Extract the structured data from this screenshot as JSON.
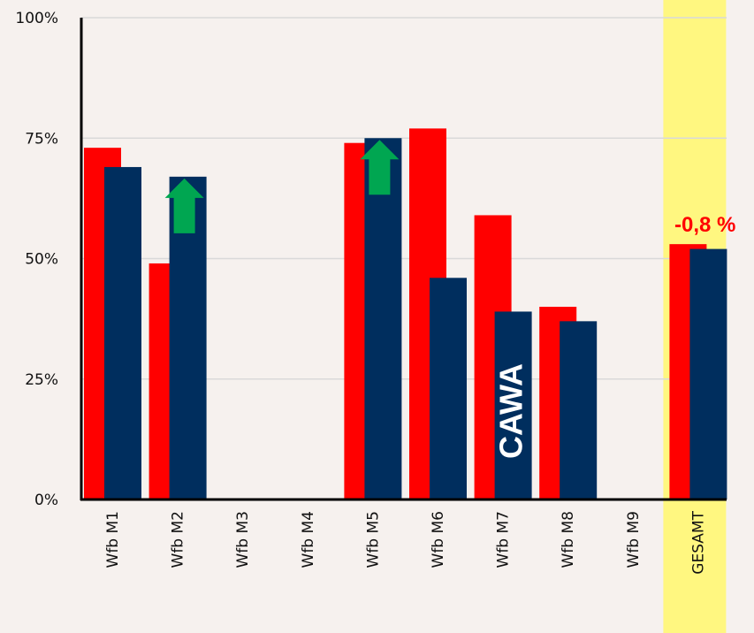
{
  "chart_data": {
    "type": "bar",
    "categories": [
      "Wfb M1",
      "Wfb M2",
      "Wfb M3",
      "Wfb M4",
      "Wfb M5",
      "Wfb M6",
      "Wfb M7",
      "Wfb M8",
      "Wfb M9",
      "GESAMT"
    ],
    "series": [
      {
        "values": [
          73,
          49,
          null,
          null,
          74,
          77,
          59,
          40,
          null,
          53
        ],
        "color": "#ff0000"
      },
      {
        "values": [
          69,
          67,
          null,
          null,
          75,
          46,
          39,
          37,
          null,
          52
        ],
        "color": "#002e5e"
      }
    ],
    "ylim": [
      0,
      100
    ],
    "yticks": [
      0,
      25,
      50,
      75,
      100
    ],
    "ytick_labels": [
      "0%",
      "25%",
      "50%",
      "75%",
      "100%"
    ],
    "grid": true,
    "highlight_category": "GESAMT",
    "highlight_color": "#fff780",
    "annotations": {
      "gesamt_change": "-0,8 %",
      "watermark": "CAWA"
    },
    "arrow_markers": [
      {
        "category": "Wfb M2",
        "direction": "up",
        "color": "#00a651"
      },
      {
        "category": "Wfb M5",
        "direction": "up",
        "color": "#00a651"
      }
    ]
  }
}
